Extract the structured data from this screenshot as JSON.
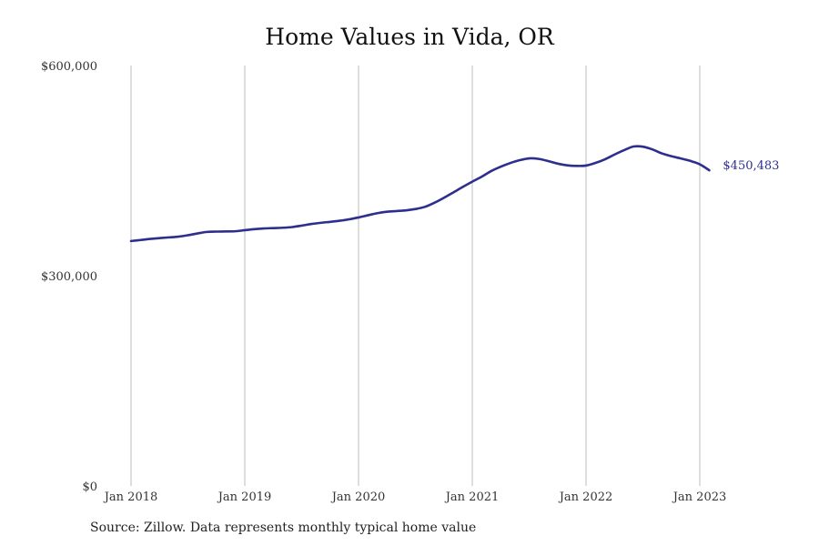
{
  "chart_data": {
    "type": "line",
    "title": "Home Values in Vida, OR",
    "source": "Source: Zillow. Data represents monthly typical home value",
    "y_ticks": [
      {
        "value": 0,
        "label": "$0"
      },
      {
        "value": 300000,
        "label": "$300,000"
      },
      {
        "value": 600000,
        "label": "$600,000"
      }
    ],
    "ylim": [
      0,
      600000
    ],
    "x_ticks": [
      {
        "value": "2018-01",
        "label": "Jan 2018"
      },
      {
        "value": "2019-01",
        "label": "Jan 2019"
      },
      {
        "value": "2020-01",
        "label": "Jan 2020"
      },
      {
        "value": "2021-01",
        "label": "Jan 2021"
      },
      {
        "value": "2022-01",
        "label": "Jan 2022"
      },
      {
        "value": "2023-01",
        "label": "Jan 2023"
      }
    ],
    "xlim": [
      "2018-01",
      "2023-01"
    ],
    "grid": "vertical",
    "line_color": "#2e2e8f",
    "end_label": "$450,483",
    "series": [
      {
        "x": [
          "2018-01",
          "2018-02",
          "2018-03",
          "2018-04",
          "2018-05",
          "2018-06",
          "2018-07",
          "2018-08",
          "2018-09",
          "2018-10",
          "2018-11",
          "2018-12",
          "2019-01",
          "2019-02",
          "2019-03",
          "2019-04",
          "2019-05",
          "2019-06",
          "2019-07",
          "2019-08",
          "2019-09",
          "2019-10",
          "2019-11",
          "2019-12",
          "2020-01",
          "2020-02",
          "2020-03",
          "2020-04",
          "2020-05",
          "2020-06",
          "2020-07",
          "2020-08",
          "2020-09",
          "2020-10",
          "2020-11",
          "2020-12",
          "2021-01",
          "2021-02",
          "2021-03",
          "2021-04",
          "2021-05",
          "2021-06",
          "2021-07",
          "2021-08",
          "2021-09",
          "2021-10",
          "2021-11",
          "2021-12",
          "2022-01",
          "2022-02",
          "2022-03",
          "2022-04",
          "2022-05",
          "2022-06",
          "2022-07",
          "2022-08",
          "2022-09",
          "2022-10",
          "2022-11",
          "2022-12",
          "2023-01",
          "2023-02"
        ],
        "values": [
          349500,
          351000,
          352500,
          353700,
          354700,
          355800,
          357800,
          360300,
          362500,
          363000,
          363200,
          363500,
          365000,
          366500,
          367500,
          368000,
          368500,
          369500,
          371500,
          373800,
          375500,
          376900,
          378500,
          380500,
          383200,
          386300,
          389300,
          391300,
          392300,
          393300,
          395200,
          398300,
          404100,
          411200,
          418900,
          426800,
          434300,
          441400,
          449400,
          455600,
          460800,
          464900,
          467500,
          466700,
          463700,
          460000,
          457600,
          456700,
          457200,
          461000,
          466200,
          472900,
          479100,
          484400,
          484200,
          480300,
          474600,
          470600,
          467400,
          463900,
          459000,
          450483
        ]
      }
    ]
  }
}
